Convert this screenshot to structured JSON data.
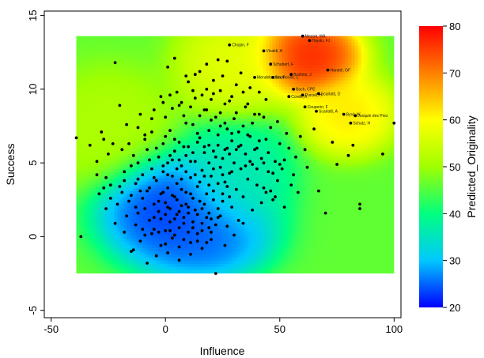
{
  "chart_data": {
    "type": "scatter",
    "subtype": "scatter over predicted-surface contour plot",
    "xlabel": "Influence",
    "ylabel": "Success",
    "xlim": [
      -53,
      103
    ],
    "ylim": [
      -5.5,
      15.3
    ],
    "xticks": [
      "-50",
      "0",
      "50",
      "100"
    ],
    "yticks": [
      "-5",
      "0",
      "5",
      "10",
      "15"
    ],
    "surface_extent": {
      "x": [
        -39,
        100
      ],
      "y": [
        -2.5,
        13.6
      ]
    },
    "colorbar": {
      "label": "Predicted_Originality",
      "min": 20,
      "max": 80,
      "ticks": [
        "20",
        "30",
        "40",
        "50",
        "60",
        "70",
        "80"
      ],
      "colors": [
        "#0000ff",
        "#00c8ff",
        "#00ff7f",
        "#a0ff00",
        "#ffff00",
        "#ff8000",
        "#ff0000"
      ]
    },
    "surface_hotspots": [
      {
        "x": 62,
        "y": 12.2,
        "z": 80,
        "sx": 11,
        "sy": 1.3
      },
      {
        "x": 80,
        "y": 8.3,
        "z": 63,
        "sx": 10,
        "sy": 1.3
      },
      {
        "x": 30,
        "y": 11.6,
        "z": 58,
        "sx": 12,
        "sy": 1.8
      },
      {
        "x": -25,
        "y": 7.3,
        "z": 52,
        "sx": 14,
        "sy": 2.0
      },
      {
        "x": 0,
        "y": 2.0,
        "z": 21,
        "sx": 14,
        "sy": 1.8
      },
      {
        "x": 17,
        "y": 0.2,
        "z": 23,
        "sx": 14,
        "sy": 1.5
      },
      {
        "x": 30,
        "y": 4.0,
        "z": 35,
        "sx": 12,
        "sy": 2.0
      }
    ],
    "labeled_points": [
      {
        "x": 60,
        "y": 13.6,
        "label": "Mozart, WA"
      },
      {
        "x": 63,
        "y": 13.3,
        "label": "Haydn, FJ"
      },
      {
        "x": 28,
        "y": 13.0,
        "label": "Chopin, F"
      },
      {
        "x": 43,
        "y": 12.6,
        "label": "Vivaldi, A"
      },
      {
        "x": 46,
        "y": 11.7,
        "label": "Schubert, F"
      },
      {
        "x": 71,
        "y": 11.3,
        "label": "Handel, GF"
      },
      {
        "x": 55,
        "y": 11.0,
        "label": "Brahms, J"
      },
      {
        "x": 39,
        "y": 10.8,
        "label": "Mendelssohn, F"
      },
      {
        "x": 47,
        "y": 10.8,
        "label": "Beethoven, L"
      },
      {
        "x": 56,
        "y": 10.0,
        "label": "Bach, CPE"
      },
      {
        "x": 54,
        "y": 9.5,
        "label": "Corelli, A"
      },
      {
        "x": 60,
        "y": 9.6,
        "label": "Purcell, H"
      },
      {
        "x": 67,
        "y": 9.7,
        "label": "Scarlatti, D"
      },
      {
        "x": 61,
        "y": 8.8,
        "label": "Couperin, F"
      },
      {
        "x": 66,
        "y": 8.5,
        "label": "Scarlatti, A"
      },
      {
        "x": 78,
        "y": 8.3,
        "label": "Byrd, W"
      },
      {
        "x": 83,
        "y": 8.2,
        "label": "Josquin des Prez"
      },
      {
        "x": 81,
        "y": 7.7,
        "label": "Schutz, H"
      }
    ],
    "points": [
      [
        -39,
        6.7
      ],
      [
        -37,
        0.0
      ],
      [
        -33,
        6.2
      ],
      [
        -30,
        4.2
      ],
      [
        -29,
        2.9
      ],
      [
        -28,
        7.1
      ],
      [
        -27,
        6.6
      ],
      [
        -26,
        4.0
      ],
      [
        -25,
        5.6
      ],
      [
        -24,
        3.5
      ],
      [
        -23,
        6.3
      ],
      [
        -22,
        11.8
      ],
      [
        -21,
        2.2
      ],
      [
        -20,
        3.4
      ],
      [
        -19,
        5.9
      ],
      [
        -18,
        0.3
      ],
      [
        -18,
        4.4
      ],
      [
        -17,
        1.4
      ],
      [
        -16,
        6.3
      ],
      [
        -15,
        2.8
      ],
      [
        -15,
        -1.0
      ],
      [
        -14,
        5.5
      ],
      [
        -13,
        3.6
      ],
      [
        -13,
        0.8
      ],
      [
        -12,
        1.6
      ],
      [
        -12,
        5.0
      ],
      [
        -11,
        -0.3
      ],
      [
        -10,
        4.2
      ],
      [
        -10,
        2.6
      ],
      [
        -9,
        6.6
      ],
      [
        -8,
        3.1
      ],
      [
        -8,
        -1.8
      ],
      [
        -7,
        5.2
      ],
      [
        -7,
        1.1
      ],
      [
        -6,
        4.6
      ],
      [
        -6,
        8.0
      ],
      [
        -5,
        2.2
      ],
      [
        -5,
        0.5
      ],
      [
        -4,
        6.0
      ],
      [
        -4,
        3.8
      ],
      [
        -3,
        1.7
      ],
      [
        -3,
        5.4
      ],
      [
        -2,
        -0.6
      ],
      [
        -2,
        2.9
      ],
      [
        -1,
        9.1
      ],
      [
        -1,
        4.4
      ],
      [
        0,
        6.8
      ],
      [
        0,
        2.3
      ],
      [
        0,
        0.4
      ],
      [
        1,
        3.3
      ],
      [
        1,
        5.0
      ],
      [
        1,
        11.5
      ],
      [
        2,
        1.0
      ],
      [
        2,
        7.2
      ],
      [
        3,
        4.1
      ],
      [
        3,
        -0.1
      ],
      [
        4,
        2.7
      ],
      [
        4,
        5.8
      ],
      [
        5,
        9.8
      ],
      [
        5,
        1.5
      ],
      [
        5,
        3.6
      ],
      [
        6,
        6.4
      ],
      [
        6,
        -0.7
      ],
      [
        7,
        4.8
      ],
      [
        7,
        2.1
      ],
      [
        8,
        8.2
      ],
      [
        8,
        0.9
      ],
      [
        9,
        5.5
      ],
      [
        9,
        3.0
      ],
      [
        10,
        10.5
      ],
      [
        10,
        1.6
      ],
      [
        10,
        6.1
      ],
      [
        11,
        4.0
      ],
      [
        11,
        -0.4
      ],
      [
        12,
        7.6
      ],
      [
        12,
        2.6
      ],
      [
        13,
        5.1
      ],
      [
        13,
        9.4
      ],
      [
        14,
        3.4
      ],
      [
        14,
        0.2
      ],
      [
        15,
        6.7
      ],
      [
        15,
        11.2
      ],
      [
        16,
        4.5
      ],
      [
        16,
        1.9
      ],
      [
        17,
        8.6
      ],
      [
        17,
        5.7
      ],
      [
        18,
        2.9
      ],
      [
        18,
        10.0
      ],
      [
        19,
        6.2
      ],
      [
        19,
        0.6
      ],
      [
        20,
        4.1
      ],
      [
        20,
        7.9
      ],
      [
        21,
        3.1
      ],
      [
        21,
        9.7
      ],
      [
        22,
        5.4
      ],
      [
        22,
        -2.5
      ],
      [
        23,
        1.3
      ],
      [
        23,
        6.9
      ],
      [
        24,
        4.7
      ],
      [
        24,
        8.4
      ],
      [
        25,
        2.4
      ],
      [
        25,
        10.9
      ],
      [
        26,
        5.9
      ],
      [
        26,
        3.7
      ],
      [
        27,
        7.3
      ],
      [
        27,
        0.7
      ],
      [
        28,
        4.3
      ],
      [
        28,
        9.2
      ],
      [
        29,
        6.5
      ],
      [
        29,
        2.0
      ],
      [
        30,
        5.0
      ],
      [
        30,
        8.0
      ],
      [
        31,
        3.2
      ],
      [
        31,
        10.3
      ],
      [
        32,
        6.1
      ],
      [
        32,
        1.1
      ],
      [
        33,
        4.6
      ],
      [
        34,
        7.5
      ],
      [
        34,
        2.7
      ],
      [
        35,
        5.6
      ],
      [
        36,
        9.0
      ],
      [
        36,
        3.9
      ],
      [
        37,
        6.8
      ],
      [
        38,
        1.8
      ],
      [
        38,
        4.9
      ],
      [
        39,
        8.3
      ],
      [
        40,
        3.5
      ],
      [
        40,
        6.0
      ],
      [
        41,
        9.8
      ],
      [
        42,
        2.3
      ],
      [
        42,
        5.3
      ],
      [
        43,
        8.1
      ],
      [
        44,
        3.0
      ],
      [
        44,
        6.6
      ],
      [
        45,
        4.4
      ],
      [
        46,
        7.4
      ],
      [
        47,
        2.5
      ],
      [
        48,
        5.1
      ],
      [
        49,
        3.8
      ],
      [
        50,
        6.3
      ],
      [
        51,
        4.6
      ],
      [
        52,
        2.0
      ],
      [
        53,
        7.0
      ],
      [
        55,
        3.5
      ],
      [
        57,
        5.4
      ],
      [
        59,
        6.8
      ],
      [
        62,
        4.7
      ],
      [
        65,
        7.3
      ],
      [
        67,
        3.1
      ],
      [
        70,
        1.6
      ],
      [
        73,
        6.4
      ],
      [
        75,
        4.9
      ],
      [
        80,
        5.5
      ],
      [
        82,
        6.2
      ],
      [
        85,
        1.9
      ],
      [
        85,
        2.2
      ],
      [
        95,
        5.6
      ],
      [
        100,
        7.7
      ],
      [
        -20,
        8.9
      ],
      [
        -17,
        7.6
      ],
      [
        -11,
        8.3
      ],
      [
        -6,
        7.1
      ],
      [
        -2,
        9.5
      ],
      [
        3,
        8.7
      ],
      [
        4,
        12.1
      ],
      [
        7,
        9.1
      ],
      [
        9,
        10.9
      ],
      [
        11,
        8.8
      ],
      [
        13,
        11.0
      ],
      [
        14,
        7.0
      ],
      [
        16,
        9.6
      ],
      [
        18,
        11.7
      ],
      [
        19,
        7.2
      ],
      [
        21,
        10.6
      ],
      [
        23,
        12.0
      ],
      [
        24,
        9.9
      ],
      [
        26,
        7.7
      ],
      [
        27,
        11.9
      ],
      [
        29,
        9.5
      ],
      [
        31,
        8.4
      ],
      [
        33,
        11.1
      ],
      [
        35,
        8.8
      ],
      [
        37,
        10.1
      ],
      [
        41,
        8.3
      ],
      [
        44,
        9.3
      ],
      [
        -30,
        5.1
      ],
      [
        -26,
        1.9
      ],
      [
        -22,
        0.9
      ],
      [
        -19,
        3.0
      ],
      [
        -14,
        -0.9
      ],
      [
        -9,
        0.1
      ],
      [
        -4,
        -1.3
      ],
      [
        1,
        -1.1
      ],
      [
        6,
        -1.6
      ],
      [
        11,
        -1.2
      ],
      [
        16,
        -0.8
      ],
      [
        20,
        -0.2
      ],
      [
        26,
        -0.6
      ],
      [
        30,
        0.1
      ],
      [
        34,
        0.9
      ],
      [
        -8,
        5.9
      ],
      [
        -1,
        6.3
      ],
      [
        2,
        5.5
      ],
      [
        4,
        6.6
      ],
      [
        6,
        5.2
      ],
      [
        8,
        6.1
      ],
      [
        12,
        5.7
      ],
      [
        14,
        6.4
      ],
      [
        17,
        6.1
      ],
      [
        19,
        5.0
      ],
      [
        21,
        5.8
      ],
      [
        23,
        6.2
      ],
      [
        25,
        5.3
      ],
      [
        27,
        6.0
      ],
      [
        28,
        5.6
      ],
      [
        31,
        5.9
      ],
      [
        33,
        6.2
      ],
      [
        35,
        4.8
      ],
      [
        -5,
        4.0
      ],
      [
        -1,
        4.8
      ],
      [
        1,
        4.2
      ],
      [
        3,
        5.2
      ],
      [
        5,
        4.6
      ],
      [
        7,
        3.9
      ],
      [
        9,
        4.4
      ],
      [
        11,
        5.1
      ],
      [
        13,
        4.2
      ],
      [
        15,
        3.7
      ],
      [
        17,
        4.1
      ],
      [
        19,
        3.5
      ],
      [
        21,
        4.6
      ],
      [
        23,
        3.6
      ],
      [
        25,
        4.2
      ],
      [
        27,
        3.4
      ],
      [
        29,
        4.4
      ],
      [
        -7,
        3.3
      ],
      [
        -3,
        2.4
      ],
      [
        -1,
        3.0
      ],
      [
        1,
        2.0
      ],
      [
        3,
        2.8
      ],
      [
        5,
        2.5
      ],
      [
        7,
        3.2
      ],
      [
        9,
        2.2
      ],
      [
        11,
        2.9
      ],
      [
        13,
        1.8
      ],
      [
        15,
        2.4
      ],
      [
        17,
        2.2
      ],
      [
        19,
        1.6
      ],
      [
        21,
        2.5
      ],
      [
        23,
        1.9
      ],
      [
        25,
        2.9
      ],
      [
        28,
        2.7
      ],
      [
        -9,
        1.9
      ],
      [
        -5,
        1.3
      ],
      [
        -2,
        1.2
      ],
      [
        0,
        1.5
      ],
      [
        2,
        1.9
      ],
      [
        4,
        1.2
      ],
      [
        6,
        1.7
      ],
      [
        8,
        1.3
      ],
      [
        10,
        2.0
      ],
      [
        12,
        1.0
      ],
      [
        14,
        1.5
      ],
      [
        16,
        0.9
      ],
      [
        18,
        1.3
      ],
      [
        20,
        1.2
      ],
      [
        22,
        0.8
      ],
      [
        24,
        1.4
      ],
      [
        -10,
        0.5
      ],
      [
        -6,
        0.2
      ],
      [
        -3,
        0.3
      ],
      [
        0,
        -0.5
      ],
      [
        2,
        0.4
      ],
      [
        4,
        0.1
      ],
      [
        6,
        0.6
      ],
      [
        8,
        -0.2
      ],
      [
        10,
        0.3
      ],
      [
        12,
        0.6
      ],
      [
        14,
        -0.3
      ],
      [
        16,
        0.4
      ],
      [
        18,
        -0.4
      ],
      [
        20,
        0.3
      ],
      [
        -16,
        2.4
      ],
      [
        -13,
        2.0
      ],
      [
        -11,
        3.1
      ],
      [
        -15,
        4.8
      ],
      [
        -12,
        3.9
      ],
      [
        -18,
        3.8
      ],
      [
        -24,
        2.6
      ],
      [
        -27,
        3.3
      ],
      [
        36,
        6.9
      ],
      [
        38,
        7.7
      ],
      [
        39,
        5.9
      ],
      [
        41,
        6.5
      ],
      [
        43,
        5.0
      ],
      [
        45,
        5.7
      ],
      [
        47,
        4.3
      ],
      [
        49,
        7.8
      ],
      [
        50,
        4.9
      ],
      [
        54,
        6.0
      ],
      [
        -12,
        7.4
      ],
      [
        -9,
        6.9
      ],
      [
        -5,
        8.6
      ],
      [
        0,
        8.1
      ],
      [
        2,
        9.6
      ],
      [
        6,
        8.9
      ],
      [
        9,
        7.7
      ],
      [
        12,
        9.9
      ],
      [
        15,
        8.2
      ],
      [
        18,
        8.6
      ],
      [
        20,
        9.3
      ],
      [
        22,
        8.1
      ],
      [
        24,
        7.5
      ],
      [
        26,
        9.0
      ],
      [
        29,
        7.0
      ],
      [
        32,
        7.1
      ],
      [
        34,
        9.8
      ],
      [
        37,
        5.1
      ],
      [
        40,
        4.6
      ],
      [
        43,
        3.3
      ],
      [
        46,
        3.1
      ],
      [
        48,
        2.7
      ],
      [
        52,
        5.2
      ],
      [
        56,
        4.2
      ],
      [
        58,
        3.0
      ],
      [
        61,
        5.9
      ]
    ]
  }
}
